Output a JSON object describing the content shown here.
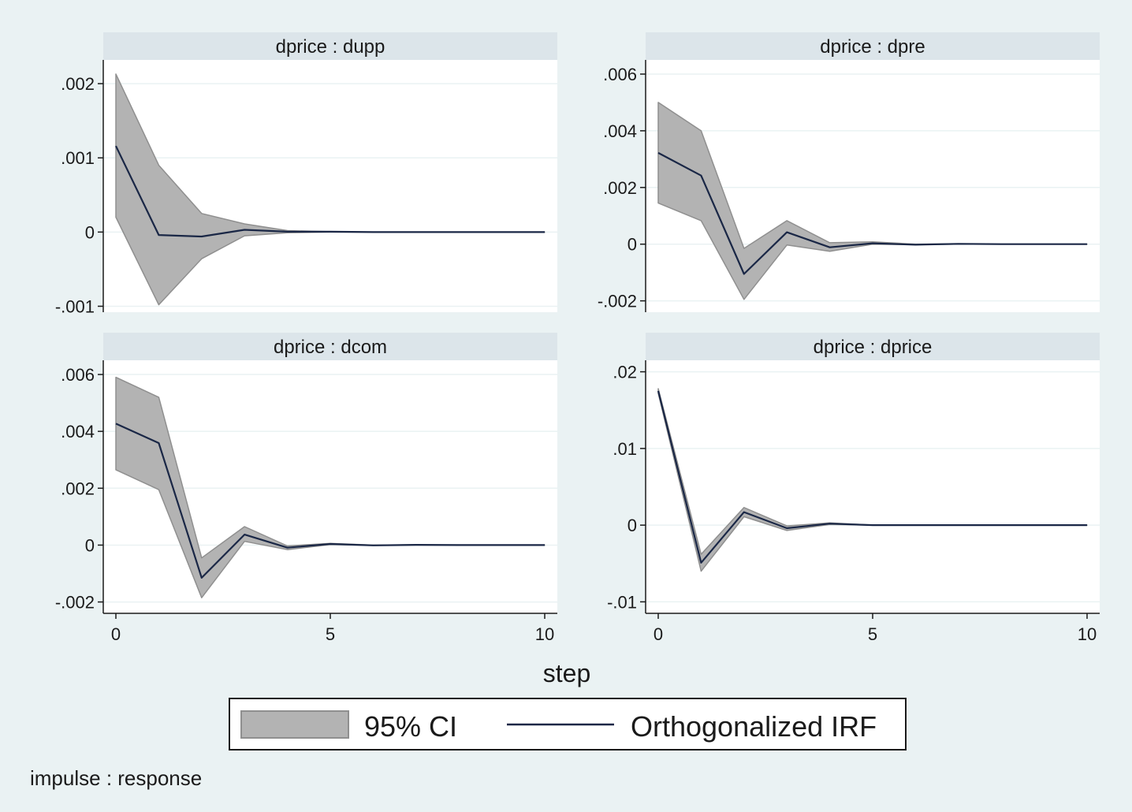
{
  "chart_data": {
    "type": "line",
    "x": [
      0,
      1,
      2,
      3,
      4,
      5,
      6,
      7,
      8,
      9,
      10
    ],
    "xlabel": "step",
    "xlim": [
      0,
      10
    ],
    "xticks": [
      0,
      5,
      10
    ],
    "xtick_labels": [
      "0",
      "5",
      "10"
    ],
    "note": "impulse : response",
    "legend": {
      "placement": "bottom-center",
      "entries": [
        {
          "label": "95% CI",
          "kind": "band",
          "color": "#b3b3b3"
        },
        {
          "label": "Orthogonalized IRF",
          "kind": "line",
          "color": "#1a2746"
        }
      ]
    },
    "colors": {
      "background": "#eaf2f3",
      "plot_area": "#ffffff",
      "title_strip": "#dce5ea",
      "grid": "#eaf2f3",
      "band": "#b3b3b3",
      "band_edge": "#8f8f8f",
      "line": "#1a2746"
    },
    "panels": [
      {
        "title": "dprice : dupp",
        "ylim": [
          -0.00108,
          0.00232
        ],
        "yticks": [
          -0.001,
          0,
          0.001,
          0.002
        ],
        "ytick_labels": [
          "-.001",
          "0",
          ".001",
          ".002"
        ],
        "series": [
          {
            "name": "Orthogonalized IRF",
            "values": [
              0.00116,
              -4e-05,
              -6e-05,
              3e-05,
              5e-06,
              5e-06,
              0.0,
              0.0,
              0.0,
              0.0,
              0.0
            ]
          },
          {
            "name": "95% CI lower",
            "values": [
              0.0002,
              -0.00098,
              -0.00036,
              -5e-05,
              -1e-05,
              0.0,
              0.0,
              0.0,
              0.0,
              0.0,
              0.0
            ]
          },
          {
            "name": "95% CI upper",
            "values": [
              0.00213,
              0.0009,
              0.00025,
              0.00011,
              2e-05,
              5e-06,
              0.0,
              0.0,
              0.0,
              0.0,
              0.0
            ]
          }
        ]
      },
      {
        "title": "dprice : dpre",
        "ylim": [
          -0.0024,
          0.0065
        ],
        "yticks": [
          -0.002,
          0,
          0.002,
          0.004,
          0.006
        ],
        "ytick_labels": [
          "-.002",
          "0",
          ".002",
          ".004",
          ".006"
        ],
        "series": [
          {
            "name": "Orthogonalized IRF",
            "values": [
              0.00322,
              0.00242,
              -0.00105,
              0.00042,
              -0.00011,
              3e-05,
              -2e-05,
              1e-05,
              0.0,
              0.0,
              0.0
            ]
          },
          {
            "name": "95% CI lower",
            "values": [
              0.00145,
              0.00083,
              -0.00195,
              -3e-05,
              -0.00025,
              0.0,
              -2e-05,
              0.0,
              0.0,
              0.0,
              0.0
            ]
          },
          {
            "name": "95% CI upper",
            "values": [
              0.005,
              0.004,
              -0.00015,
              0.00083,
              5e-05,
              8e-05,
              0.0,
              1e-05,
              0.0,
              0.0,
              0.0
            ]
          }
        ]
      },
      {
        "title": "dprice : dcom",
        "ylim": [
          -0.0024,
          0.0065
        ],
        "yticks": [
          -0.002,
          0,
          0.002,
          0.004,
          0.006
        ],
        "ytick_labels": [
          "-.002",
          "0",
          ".002",
          ".004",
          ".006"
        ],
        "series": [
          {
            "name": "Orthogonalized IRF",
            "values": [
              0.00427,
              0.00359,
              -0.00115,
              0.00037,
              -9e-05,
              4e-05,
              -1e-05,
              1e-05,
              0.0,
              0.0,
              0.0
            ]
          },
          {
            "name": "95% CI lower",
            "values": [
              0.00265,
              0.00195,
              -0.00185,
              0.00013,
              -0.00016,
              2e-05,
              -1e-05,
              0.0,
              0.0,
              0.0,
              0.0
            ]
          },
          {
            "name": "95% CI upper",
            "values": [
              0.0059,
              0.0052,
              -0.00045,
              0.00065,
              -3e-05,
              6e-05,
              0.0,
              1e-05,
              0.0,
              0.0,
              0.0
            ]
          }
        ]
      },
      {
        "title": "dprice : dprice",
        "ylim": [
          -0.0115,
          0.0215
        ],
        "yticks": [
          -0.01,
          0,
          0.01,
          0.02
        ],
        "ytick_labels": [
          "-.01",
          "0",
          ".01",
          ".02"
        ],
        "series": [
          {
            "name": "Orthogonalized IRF",
            "values": [
              0.0175,
              -0.0049,
              0.0017,
              -0.0004,
              0.0002,
              0.0,
              0.0,
              0.0,
              0.0,
              0.0,
              0.0
            ]
          },
          {
            "name": "95% CI lower",
            "values": [
              0.0172,
              -0.006,
              0.0011,
              -0.0007,
              0.0001,
              0.0,
              0.0,
              0.0,
              0.0,
              0.0,
              0.0
            ]
          },
          {
            "name": "95% CI upper",
            "values": [
              0.0178,
              -0.0038,
              0.0023,
              -0.0001,
              0.0003,
              0.0,
              0.0,
              0.0,
              0.0,
              0.0,
              0.0
            ]
          }
        ]
      }
    ]
  }
}
